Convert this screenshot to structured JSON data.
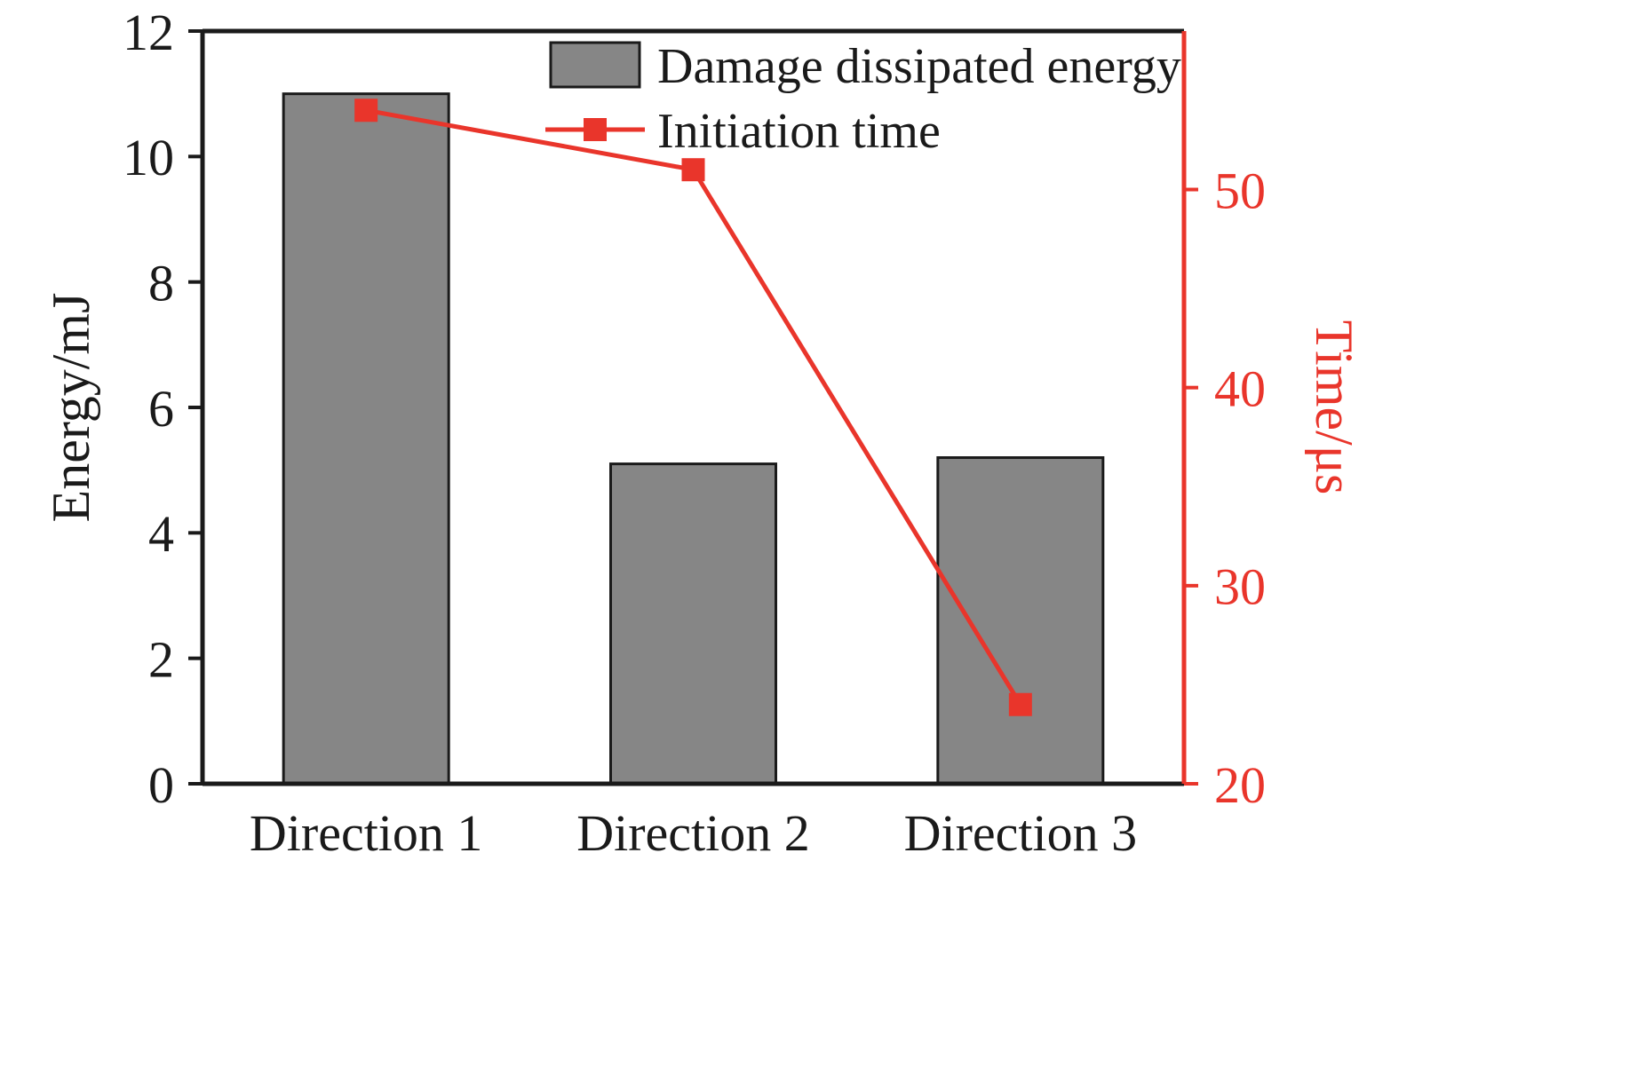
{
  "chart_data": {
    "type": "bar",
    "subtype": "bar+line-dual-axis",
    "categories": [
      "Direction 1",
      "Direction 2",
      "Direction 3"
    ],
    "series": [
      {
        "name": "Damage dissipated energy",
        "type": "bar",
        "axis": "left",
        "values": [
          11.0,
          5.1,
          5.2
        ],
        "fill_color": "#868686",
        "stroke_color": "#1a1a1a"
      },
      {
        "name": "Initiation time",
        "type": "line",
        "axis": "right",
        "values": [
          54,
          51,
          24
        ],
        "color": "#e9352b",
        "marker": "square"
      }
    ],
    "left_axis": {
      "label": "Energy/mJ",
      "min": 0,
      "max": 12,
      "ticks": [
        0,
        2,
        4,
        6,
        8,
        10,
        12
      ],
      "color": "#1a1a1a"
    },
    "right_axis": {
      "label": "Time/μs",
      "min": 20,
      "max": 58,
      "ticks": [
        20,
        30,
        40,
        50
      ],
      "color": "#e9352b"
    },
    "x_axis": {
      "tick_labels": [
        "Direction 1",
        "Direction 2",
        "Direction 3"
      ]
    },
    "legend": {
      "position": "top-center-inside",
      "entries": [
        "Damage dissipated energy",
        "Initiation time"
      ]
    },
    "grid": false,
    "title": ""
  }
}
